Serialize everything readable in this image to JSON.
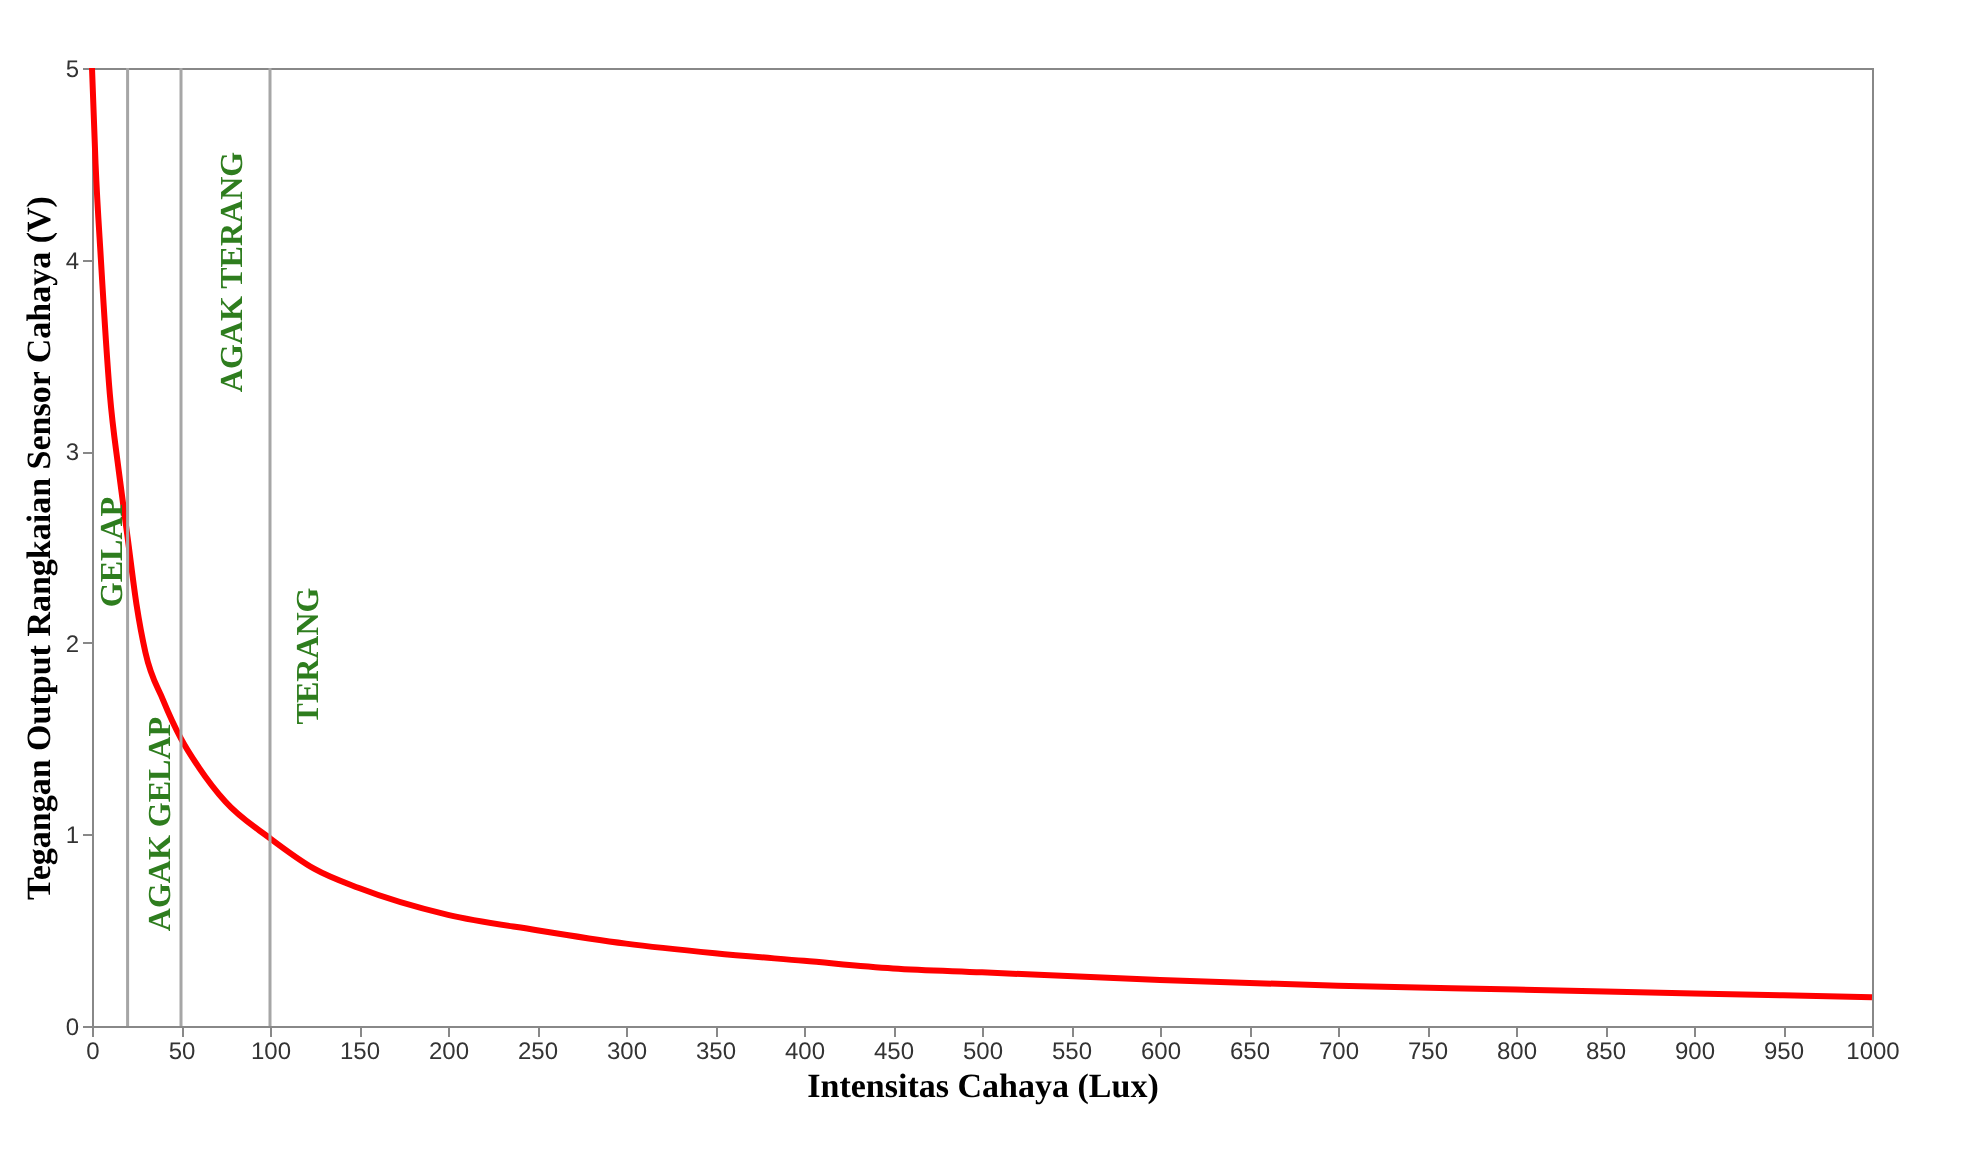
{
  "chart_data": {
    "type": "line",
    "xlabel": "Intensitas Cahaya (Lux)",
    "ylabel": "Tegangan Output Rangkaian Sensor Cahaya (V)",
    "series": [
      {
        "color": "#ff0000",
        "x": [
          0,
          2,
          5,
          10,
          15,
          20,
          25,
          30,
          40,
          50,
          60,
          75,
          100,
          125,
          150,
          200,
          250,
          300,
          350,
          400,
          450,
          500,
          600,
          700,
          800,
          900,
          1000
        ],
        "values": [
          5,
          4.5,
          4,
          3.3,
          2.9,
          2.55,
          2.2,
          1.95,
          1.7,
          1.5,
          1.35,
          1.17,
          0.98,
          0.82,
          0.72,
          0.58,
          0.5,
          0.43,
          0.38,
          0.34,
          0.3,
          0.28,
          0.24,
          0.21,
          0.19,
          0.17,
          0.15
        ]
      }
    ],
    "xlim": [
      0,
      1000
    ],
    "xticks": [
      0,
      50,
      100,
      150,
      200,
      250,
      300,
      350,
      400,
      450,
      500,
      550,
      600,
      650,
      700,
      750,
      800,
      850,
      900,
      950,
      1000
    ],
    "ylim": [
      0,
      5
    ],
    "yticks": [
      0,
      1,
      2,
      3,
      4,
      5
    ],
    "grid": false,
    "marker": "none",
    "line_style": "solid",
    "legend": false,
    "ref_lines": [
      {
        "axis": "x",
        "value": 20,
        "color": "#a6a6a6"
      },
      {
        "axis": "x",
        "value": 50,
        "color": "#a6a6a6"
      },
      {
        "axis": "x",
        "value": 100,
        "color": "#a6a6a6"
      }
    ],
    "annotations": [
      "GELAP",
      "AGAK GELAP",
      "AGAK TERANG",
      "TERANG"
    ]
  }
}
